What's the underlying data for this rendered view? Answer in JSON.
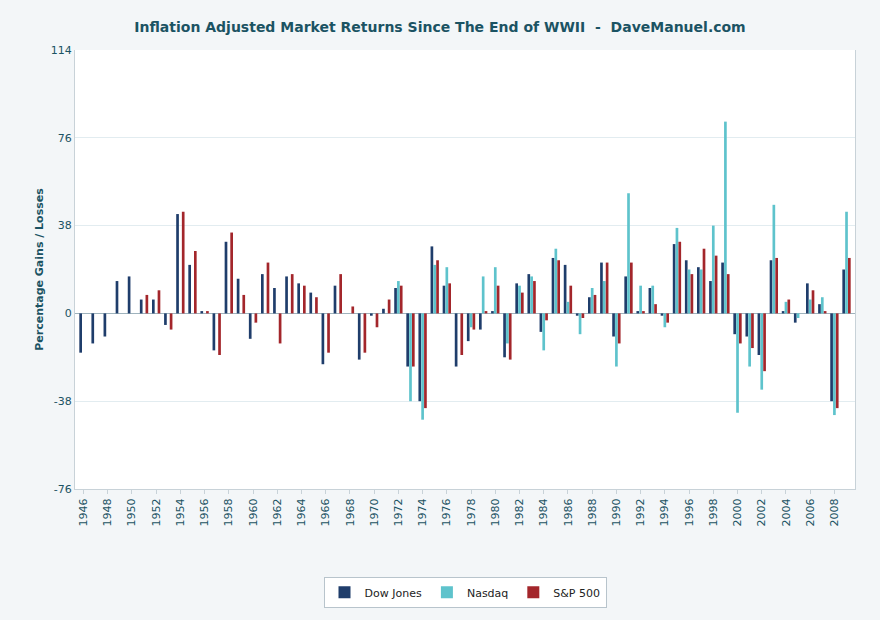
{
  "chart_data": {
    "type": "bar",
    "title": "Inflation Adjusted Market Returns Since The End of WWII  -  DaveManuel.com",
    "y_label": "Percentage Gains / Losses",
    "categories": [
      "1946",
      null,
      "1948",
      null,
      "1950",
      null,
      "1952",
      null,
      "1954",
      null,
      "1956",
      null,
      "1958",
      null,
      "1960",
      null,
      "1962",
      null,
      "1964",
      null,
      "1966",
      null,
      "1968",
      null,
      "1970",
      null,
      "1972",
      null,
      "1974",
      null,
      "1976",
      null,
      "1978",
      null,
      "1980",
      null,
      "1982",
      null,
      "1984",
      null,
      "1986",
      null,
      "1988",
      null,
      "1990",
      null,
      "1992",
      null,
      "1994",
      null,
      "1996",
      null,
      "1998",
      null,
      "2000",
      null,
      "2002",
      null,
      "2004",
      null,
      "2006",
      null,
      "2008",
      null
    ],
    "series": [
      {
        "name": "Dow Jones",
        "color": "#1f3d6b",
        "values": [
          -17,
          -13,
          -10,
          14,
          16,
          6,
          6,
          -5,
          43,
          21,
          1,
          -16,
          31,
          15,
          -11,
          17,
          11,
          16,
          13,
          9,
          -22,
          12,
          0,
          -20,
          -1,
          2,
          11,
          -23,
          -38,
          29,
          12,
          -23,
          -12,
          -7,
          1,
          -19,
          13,
          17,
          -8,
          24,
          21,
          -1,
          7,
          22,
          -10,
          16,
          1,
          11,
          -1,
          30,
          23,
          20,
          14,
          22,
          -9,
          -10,
          -18,
          23,
          1,
          -4,
          13,
          4,
          -38,
          19
        ]
      },
      {
        "name": "Nasdaq",
        "color": "#5ec3cc",
        "values": [
          null,
          null,
          null,
          null,
          null,
          null,
          null,
          null,
          null,
          null,
          null,
          null,
          null,
          null,
          null,
          null,
          null,
          null,
          null,
          null,
          null,
          null,
          null,
          null,
          null,
          null,
          14,
          -38,
          -46,
          21,
          20,
          0,
          -6,
          16,
          20,
          -13,
          12,
          16,
          -16,
          28,
          5,
          -9,
          11,
          14,
          -23,
          52,
          12,
          12,
          -6,
          37,
          19,
          19,
          38,
          83,
          -43,
          -23,
          -33,
          47,
          5,
          -2,
          6,
          7,
          -44,
          44
        ]
      },
      {
        "name": "S&P 500",
        "color": "#a3262b",
        "values": [
          null,
          null,
          null,
          null,
          null,
          8,
          10,
          -7,
          44,
          27,
          1,
          -18,
          35,
          8,
          -4,
          22,
          -13,
          17,
          12,
          7,
          -17,
          17,
          3,
          -17,
          -6,
          6,
          12,
          -23,
          -41,
          23,
          13,
          -18,
          -7,
          1,
          12,
          -20,
          9,
          14,
          -3,
          23,
          12,
          -2,
          8,
          22,
          -13,
          22,
          1,
          4,
          -4,
          31,
          17,
          28,
          25,
          17,
          -13,
          -15,
          -25,
          24,
          6,
          0,
          10,
          1,
          -41,
          24
        ]
      }
    ],
    "ylim": [
      -76,
      114
    ],
    "yticks": [
      -76,
      -38,
      0,
      38,
      76,
      114
    ],
    "grid": true,
    "legend": "bottom"
  }
}
